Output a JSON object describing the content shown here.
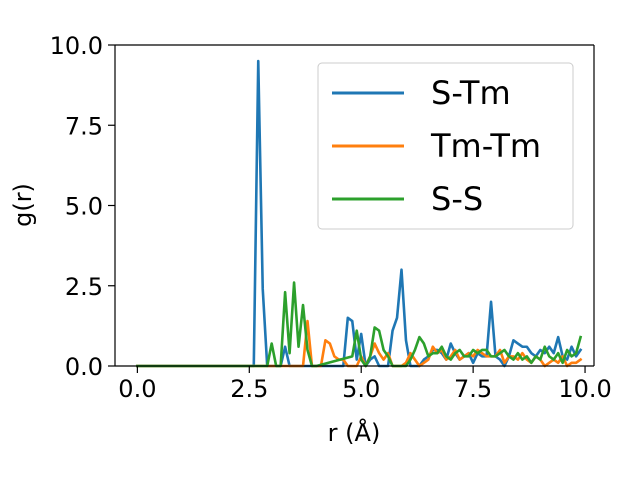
{
  "chart_data": {
    "type": "line",
    "title": "",
    "xlabel": "r (Å)",
    "ylabel": "g(r)",
    "xlim": [
      -0.5,
      10.2
    ],
    "ylim": [
      0.0,
      10.0
    ],
    "x_ticks": [
      0.0,
      2.5,
      5.0,
      7.5,
      10.0
    ],
    "x_tick_labels": [
      "0.0",
      "2.5",
      "5.0",
      "7.5",
      "10.0"
    ],
    "y_ticks": [
      0.0,
      2.5,
      5.0,
      7.5,
      10.0
    ],
    "y_tick_labels": [
      "0.0",
      "2.5",
      "5.0",
      "7.5",
      "10.0"
    ],
    "grid": false,
    "legend_position": "top-right",
    "series": [
      {
        "name": "S-Tm",
        "color": "#1f77b4",
        "x": [
          0.0,
          2.6,
          2.7,
          2.8,
          2.9,
          3.0,
          3.2,
          3.3,
          3.4,
          3.5,
          4.3,
          4.6,
          4.7,
          4.8,
          4.9,
          5.0,
          5.1,
          5.2,
          5.3,
          5.4,
          5.5,
          5.6,
          5.7,
          5.8,
          5.9,
          6.0,
          6.1,
          6.2,
          6.3,
          6.4,
          6.5,
          6.6,
          6.7,
          6.8,
          6.9,
          7.0,
          7.1,
          7.2,
          7.3,
          7.4,
          7.5,
          7.6,
          7.7,
          7.8,
          7.9,
          8.0,
          8.1,
          8.2,
          8.3,
          8.4,
          8.5,
          8.6,
          8.7,
          8.8,
          8.9,
          9.0,
          9.1,
          9.2,
          9.3,
          9.4,
          9.5,
          9.6,
          9.7,
          9.8,
          9.9
        ],
        "y": [
          0.0,
          0.0,
          9.5,
          2.4,
          0.0,
          0.0,
          0.0,
          0.6,
          0.0,
          0.0,
          0.0,
          0.0,
          1.5,
          1.4,
          0.2,
          1.0,
          0.0,
          0.2,
          0.3,
          0.0,
          0.0,
          0.0,
          1.1,
          1.5,
          3.0,
          0.8,
          0.0,
          0.0,
          0.0,
          0.2,
          0.3,
          0.5,
          0.5,
          0.4,
          0.2,
          0.7,
          0.4,
          0.2,
          0.3,
          0.4,
          0.1,
          0.4,
          0.3,
          0.3,
          2.0,
          0.3,
          0.2,
          0.0,
          0.3,
          0.8,
          0.7,
          0.6,
          0.6,
          0.4,
          0.3,
          0.5,
          0.4,
          0.6,
          0.4,
          0.9,
          0.3,
          0.2,
          0.6,
          0.3,
          0.5
        ]
      },
      {
        "name": "Tm-Tm",
        "color": "#ff7f0e",
        "x": [
          0.0,
          3.7,
          3.8,
          3.9,
          4.0,
          4.1,
          4.2,
          4.3,
          4.4,
          4.5,
          4.6,
          4.7,
          4.8,
          4.9,
          5.0,
          5.1,
          5.2,
          5.3,
          5.4,
          5.5,
          5.6,
          5.7,
          5.8,
          5.9,
          6.0,
          6.1,
          6.2,
          6.3,
          6.4,
          6.5,
          6.6,
          6.7,
          6.8,
          6.9,
          7.0,
          7.1,
          7.2,
          7.3,
          7.4,
          7.5,
          7.6,
          7.7,
          7.8,
          7.9,
          8.0,
          8.1,
          8.2,
          8.3,
          8.4,
          8.5,
          8.6,
          8.7,
          8.8,
          8.9,
          9.0,
          9.1,
          9.2,
          9.3,
          9.4,
          9.5,
          9.6,
          9.7,
          9.8,
          9.9
        ],
        "y": [
          0.0,
          0.0,
          1.4,
          0.0,
          0.0,
          0.0,
          0.8,
          0.7,
          0.3,
          0.2,
          0.2,
          0.0,
          0.0,
          0.0,
          0.3,
          0.0,
          0.3,
          0.7,
          0.4,
          0.2,
          0.4,
          0.0,
          0.0,
          0.0,
          0.1,
          0.4,
          0.2,
          0.0,
          0.1,
          0.2,
          0.6,
          0.4,
          0.5,
          0.2,
          0.3,
          0.5,
          0.2,
          0.3,
          0.4,
          0.3,
          0.5,
          0.4,
          0.3,
          0.3,
          0.3,
          0.5,
          0.1,
          0.3,
          0.3,
          0.2,
          0.4,
          0.2,
          0.1,
          0.3,
          0.2,
          0.0,
          0.1,
          0.2,
          0.1,
          0.3,
          0.0,
          0.1,
          0.1,
          0.2
        ]
      },
      {
        "name": "S-S",
        "color": "#2ca02c",
        "x": [
          0.0,
          2.8,
          2.9,
          3.0,
          3.1,
          3.2,
          3.3,
          3.4,
          3.5,
          3.6,
          3.7,
          3.8,
          3.9,
          4.0,
          4.8,
          4.9,
          5.0,
          5.1,
          5.2,
          5.3,
          5.4,
          5.5,
          5.6,
          5.7,
          5.8,
          5.9,
          6.0,
          6.1,
          6.2,
          6.3,
          6.4,
          6.5,
          6.6,
          6.7,
          6.8,
          6.9,
          7.0,
          7.1,
          7.2,
          7.3,
          7.4,
          7.5,
          7.6,
          7.7,
          7.8,
          7.9,
          8.0,
          8.1,
          8.2,
          8.3,
          8.4,
          8.5,
          8.6,
          8.7,
          8.8,
          8.9,
          9.0,
          9.1,
          9.2,
          9.3,
          9.4,
          9.5,
          9.6,
          9.7,
          9.8,
          9.9
        ],
        "y": [
          0.0,
          0.0,
          0.0,
          0.7,
          0.0,
          0.0,
          2.3,
          0.4,
          2.6,
          0.6,
          1.9,
          0.5,
          0.0,
          0.0,
          0.3,
          1.1,
          0.2,
          0.0,
          0.3,
          1.2,
          1.1,
          0.5,
          0.3,
          0.0,
          0.0,
          0.0,
          0.0,
          0.2,
          0.5,
          0.9,
          0.7,
          0.3,
          0.4,
          0.4,
          0.6,
          0.3,
          0.2,
          0.4,
          0.5,
          0.3,
          0.3,
          0.5,
          0.4,
          0.5,
          0.5,
          0.3,
          0.3,
          0.4,
          0.5,
          0.3,
          0.2,
          0.4,
          0.2,
          0.3,
          0.1,
          0.3,
          0.2,
          0.6,
          0.3,
          0.2,
          0.4,
          0.1,
          0.5,
          0.3,
          0.4,
          0.9
        ]
      }
    ]
  }
}
